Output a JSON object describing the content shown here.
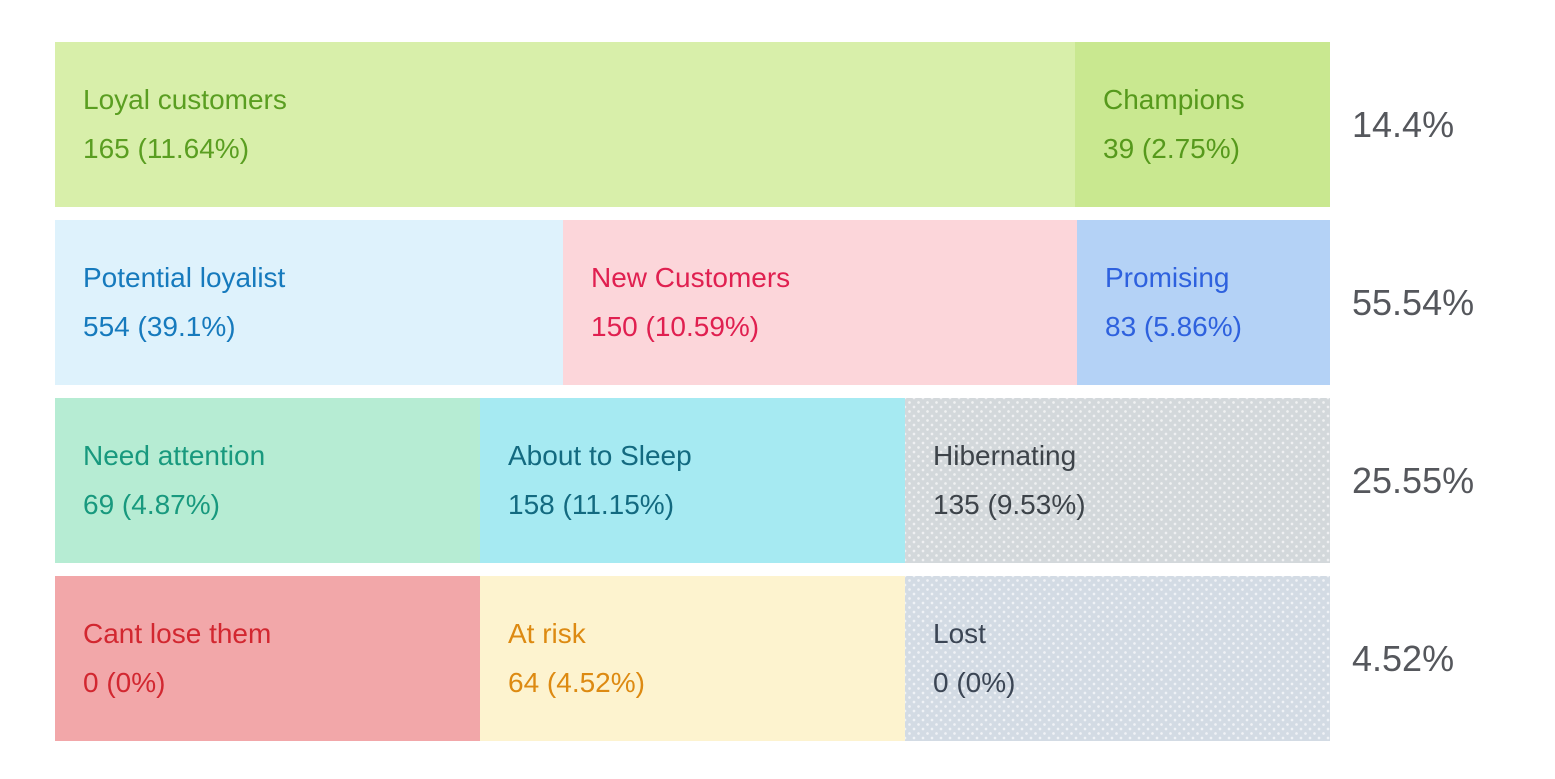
{
  "chart_data": {
    "type": "treemap",
    "description": "RFM customer segmentation treemap: 4 rows of segments with counts and share of total, row-total percentages at right",
    "grid": "off",
    "legend": "none",
    "row_percent_color": "#55575c",
    "rows": [
      {
        "row_percent": "14.4%",
        "segments": [
          {
            "label": "Loyal customers",
            "count": 165,
            "percent_of_total": 11.64,
            "display_value": "165 (11.64%)",
            "bg_color": "#d8efaa",
            "text_color": "#5a9e21"
          },
          {
            "label": "Champions",
            "count": 39,
            "percent_of_total": 2.75,
            "display_value": "39 (2.75%)",
            "bg_color": "#c9e890",
            "text_color": "#56991c"
          }
        ]
      },
      {
        "row_percent": "55.54%",
        "segments": [
          {
            "label": "Potential loyalist",
            "count": 554,
            "percent_of_total": 39.1,
            "display_value": "554 (39.1%)",
            "bg_color": "#def2fc",
            "text_color": "#167abd"
          },
          {
            "label": "New Customers",
            "count": 150,
            "percent_of_total": 10.59,
            "display_value": "150 (10.59%)",
            "bg_color": "#fcd6da",
            "text_color": "#e02050"
          },
          {
            "label": "Promising",
            "count": 83,
            "percent_of_total": 5.86,
            "display_value": "83 (5.86%)",
            "bg_color": "#b4d2f6",
            "text_color": "#2e61de"
          }
        ]
      },
      {
        "row_percent": "25.55%",
        "segments": [
          {
            "label": "Need attention",
            "count": 69,
            "percent_of_total": 4.87,
            "display_value": "69 (4.87%)",
            "bg_color": "#b6ecd3",
            "text_color": "#18997e"
          },
          {
            "label": "About to Sleep",
            "count": 158,
            "percent_of_total": 11.15,
            "display_value": "158 (11.15%)",
            "bg_color": "#a6eaf2",
            "text_color": "#136a80"
          },
          {
            "label": "Hibernating",
            "count": 135,
            "percent_of_total": 9.53,
            "display_value": "135 (9.53%)",
            "bg_color": "#d3d8db",
            "text_color": "#3d4349"
          }
        ]
      },
      {
        "row_percent": "4.52%",
        "segments": [
          {
            "label": "Cant lose them",
            "count": 0,
            "percent_of_total": 0,
            "display_value": "0 (0%)",
            "bg_color": "#f2a7a9",
            "text_color": "#d22730"
          },
          {
            "label": "At risk",
            "count": 64,
            "percent_of_total": 4.52,
            "display_value": "64 (4.52%)",
            "bg_color": "#fdf3cf",
            "text_color": "#dd8a12"
          },
          {
            "label": "Lost",
            "count": 0,
            "percent_of_total": 0,
            "display_value": "0 (0%)",
            "bg_color": "#d3dbe4",
            "text_color": "#3b4554"
          }
        ]
      }
    ]
  }
}
